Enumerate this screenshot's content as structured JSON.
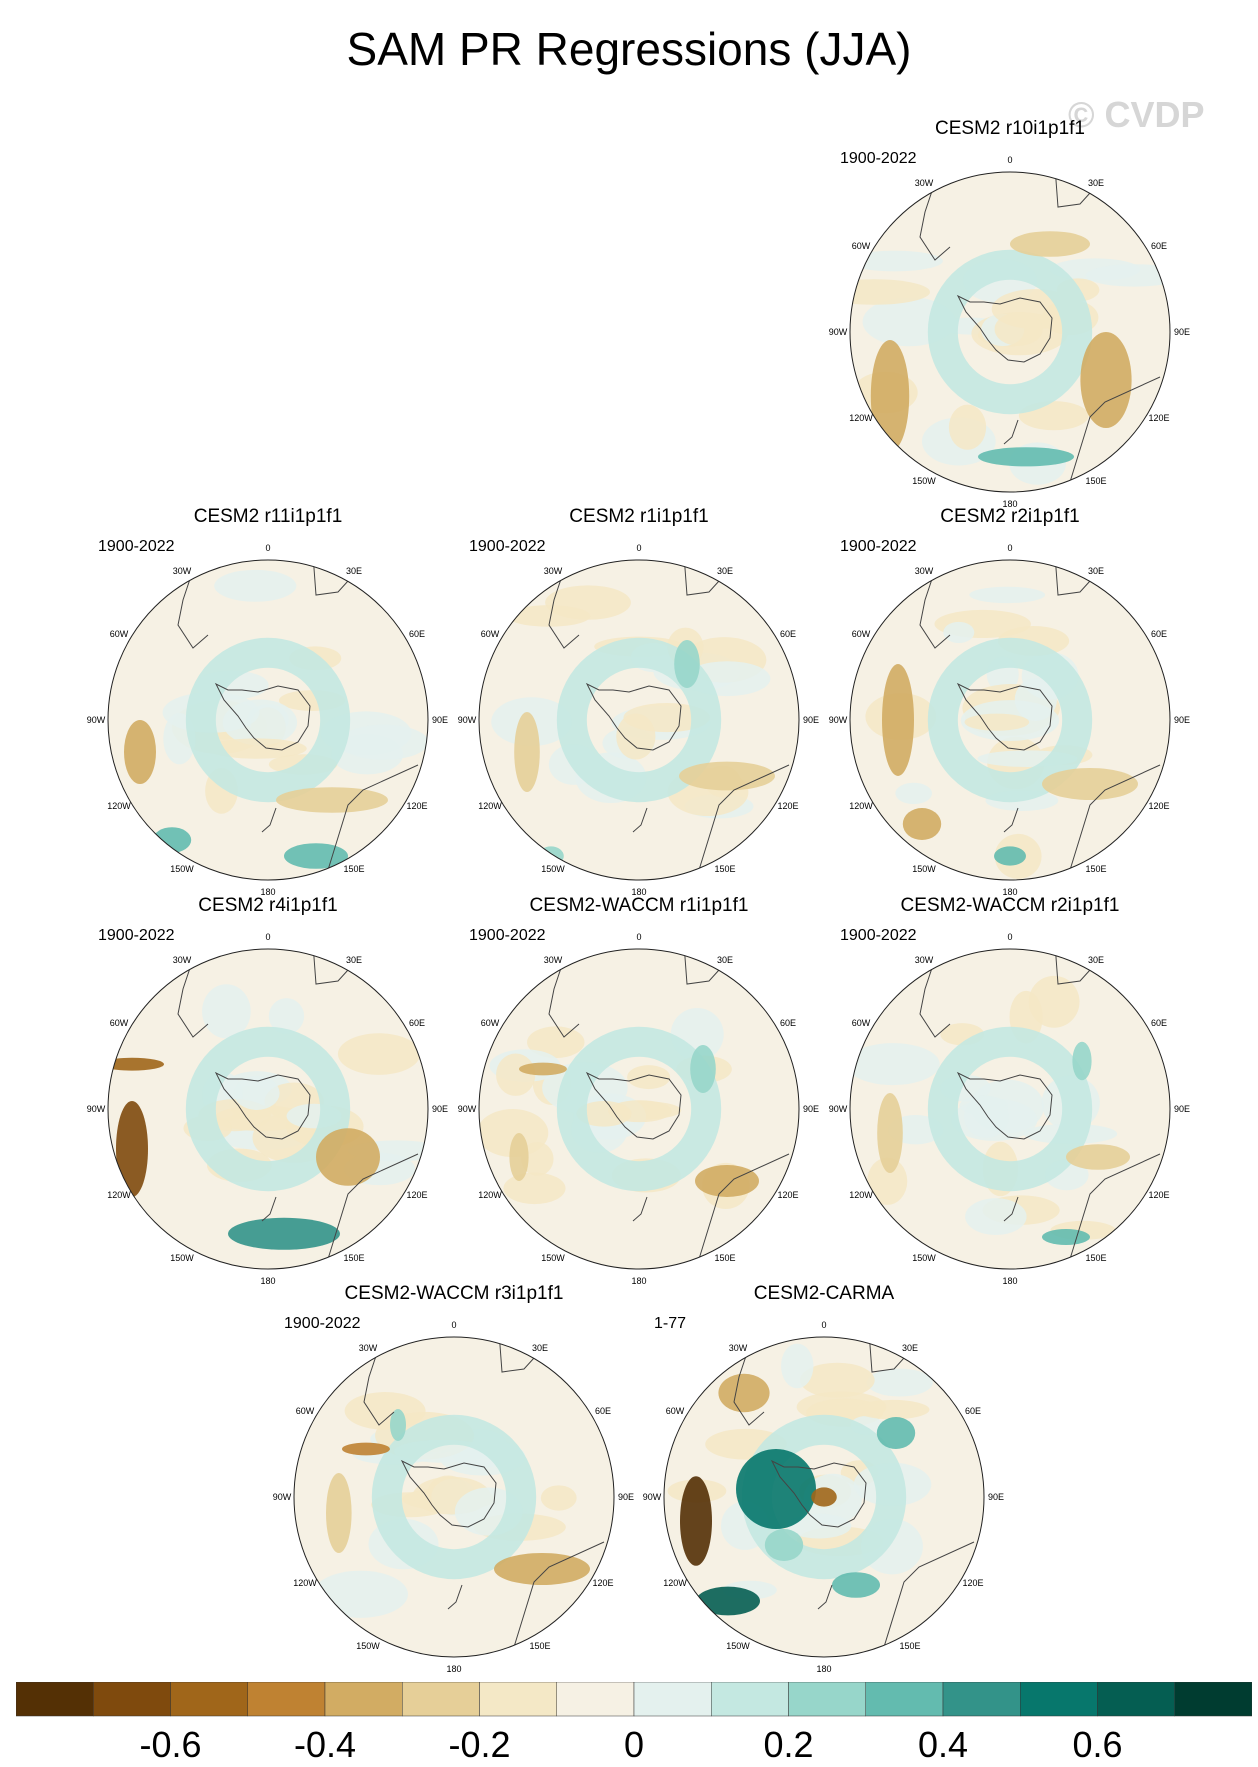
{
  "title": "SAM PR Regressions (JJA)",
  "watermark": "© CVDP",
  "longitude_labels": [
    "0",
    "30E",
    "60E",
    "90E",
    "120E",
    "150E",
    "180",
    "150W",
    "120W",
    "90W",
    "60W",
    "30W"
  ],
  "panels": [
    {
      "title": "CESM2 r10i1p1f1",
      "period": "1900-2022"
    },
    {
      "title": "CESM2 r11i1p1f1",
      "period": "1900-2022"
    },
    {
      "title": "CESM2 r1i1p1f1",
      "period": "1900-2022"
    },
    {
      "title": "CESM2 r2i1p1f1",
      "period": "1900-2022"
    },
    {
      "title": "CESM2 r4i1p1f1",
      "period": "1900-2022"
    },
    {
      "title": "CESM2-WACCM r1i1p1f1",
      "period": "1900-2022"
    },
    {
      "title": "CESM2-WACCM r2i1p1f1",
      "period": "1900-2022"
    },
    {
      "title": "CESM2-WACCM r3i1p1f1",
      "period": "1900-2022"
    },
    {
      "title": "CESM2-CARMA",
      "period": "1-77"
    }
  ],
  "colorbar": {
    "colors": [
      "#543005",
      "#7f4a0d",
      "#a0661a",
      "#bf8232",
      "#d2ac63",
      "#e6cf98",
      "#f4e8c6",
      "#f6f1e4",
      "#e4f1ee",
      "#c4e8e1",
      "#97d6ca",
      "#63bbaf",
      "#339389",
      "#07776c",
      "#055e52",
      "#003c30"
    ],
    "tick_labels": [
      "-0.6",
      "-0.4",
      "-0.2",
      "0",
      "0.2",
      "0.4",
      "0.6"
    ]
  }
}
